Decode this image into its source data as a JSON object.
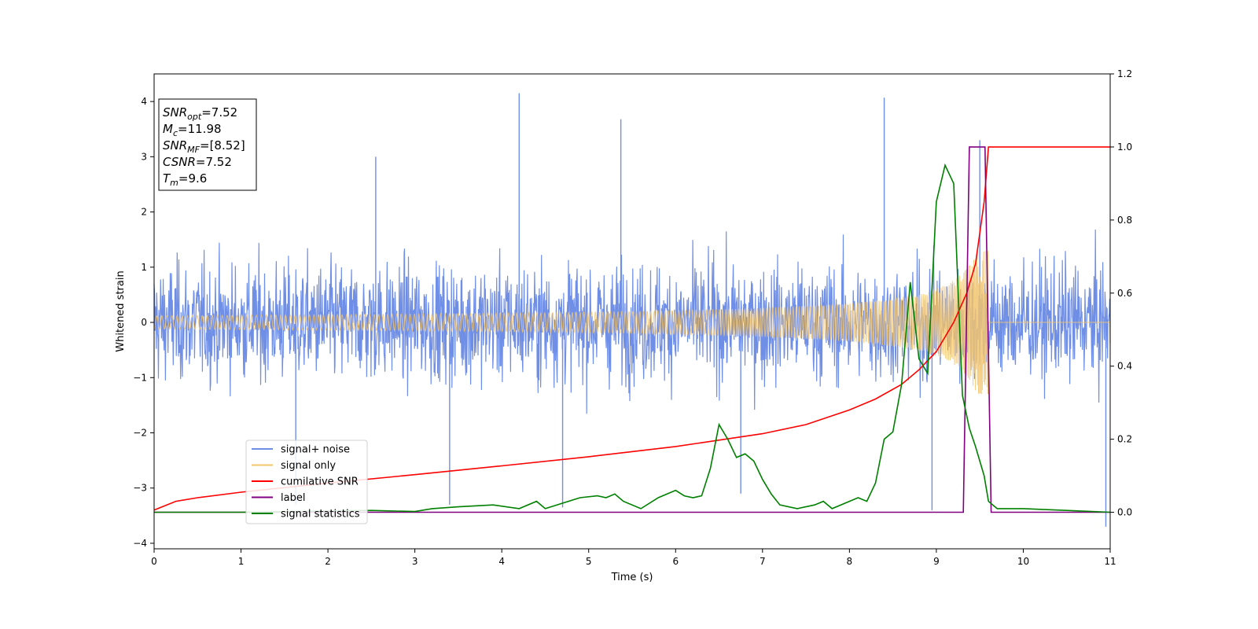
{
  "chart_data": {
    "type": "line",
    "xlabel": "Time (s)",
    "ylabel": "Whitened strain",
    "xlim": [
      0,
      11
    ],
    "ylim_left": [
      -4.1,
      4.5
    ],
    "ylim_right": [
      -0.1,
      1.2
    ],
    "x_ticks": [
      0,
      1,
      2,
      3,
      4,
      5,
      6,
      7,
      8,
      9,
      10,
      11
    ],
    "y_ticks_left": [
      -4,
      -3,
      -2,
      -1,
      0,
      1,
      2,
      3,
      4
    ],
    "y_ticks_right": [
      0.0,
      0.2,
      0.4,
      0.6,
      0.8,
      1.0,
      1.2
    ],
    "grid": false,
    "legend_position": "lower-left",
    "annotation": {
      "lines": [
        {
          "main": "SNR",
          "sub": "opt",
          "rest": "=7.52"
        },
        {
          "main": "M",
          "sub": "c",
          "rest": "=11.98"
        },
        {
          "main": "SNR",
          "sub": "MF",
          "rest": "=[8.52]"
        },
        {
          "main": "CSNR",
          "sub": "",
          "rest": "=7.52"
        },
        {
          "main": "T",
          "sub": "m",
          "rest": "=9.6"
        }
      ]
    },
    "series": [
      {
        "name": "signal+ noise",
        "axis": "left",
        "color": "#6f8ee6",
        "kind": "noise",
        "noise_std": 0.95,
        "num_samples": 2200,
        "spikes": [
          [
            4.2,
            4.15
          ],
          [
            8.4,
            4.07
          ],
          [
            5.37,
            3.68
          ],
          [
            9.5,
            3.3
          ],
          [
            2.55,
            3.0
          ],
          [
            10.95,
            -3.7
          ],
          [
            8.95,
            -3.4
          ],
          [
            4.7,
            -3.35
          ],
          [
            1.63,
            -3.3
          ],
          [
            3.4,
            -3.3
          ],
          [
            6.75,
            -3.1
          ]
        ]
      },
      {
        "name": "signal only",
        "axis": "left",
        "color": "#f2c46e",
        "kind": "chirp",
        "merger_time": 9.6,
        "peak_amplitude": 1.3
      },
      {
        "name": "cumilative SNR",
        "axis": "right",
        "color": "#ff0000",
        "x": [
          0,
          0.25,
          0.5,
          1.0,
          2.0,
          3.0,
          4.0,
          5.0,
          6.0,
          7.0,
          7.5,
          8.0,
          8.3,
          8.6,
          8.8,
          9.0,
          9.2,
          9.35,
          9.45,
          9.55,
          9.6,
          11.0
        ],
        "y": [
          0.006,
          0.03,
          0.04,
          0.055,
          0.08,
          0.103,
          0.127,
          0.152,
          0.18,
          0.215,
          0.24,
          0.28,
          0.31,
          0.35,
          0.39,
          0.44,
          0.52,
          0.6,
          0.68,
          0.85,
          1.0,
          1.0
        ]
      },
      {
        "name": "label",
        "axis": "right",
        "color": "#800080",
        "x": [
          0,
          9.31,
          9.38,
          9.56,
          9.63,
          11.0
        ],
        "y": [
          0,
          0,
          1,
          1,
          0,
          0
        ]
      },
      {
        "name": "signal statistics",
        "axis": "right",
        "color": "#008000",
        "x": [
          0,
          0.5,
          1.0,
          2.5,
          3.0,
          3.2,
          3.5,
          3.9,
          4.2,
          4.4,
          4.5,
          4.9,
          5.1,
          5.2,
          5.3,
          5.4,
          5.6,
          5.8,
          6.0,
          6.1,
          6.2,
          6.3,
          6.4,
          6.5,
          6.6,
          6.7,
          6.8,
          6.9,
          7.0,
          7.1,
          7.2,
          7.4,
          7.6,
          7.7,
          7.8,
          8.0,
          8.1,
          8.2,
          8.3,
          8.4,
          8.5,
          8.6,
          8.7,
          8.8,
          8.9,
          9.0,
          9.1,
          9.2,
          9.3,
          9.38,
          9.45,
          9.55,
          9.6,
          9.7,
          10.0,
          10.5,
          11.0
        ],
        "y": [
          0.0,
          0.0,
          0.0,
          0.005,
          0.002,
          0.01,
          0.015,
          0.02,
          0.01,
          0.03,
          0.01,
          0.04,
          0.045,
          0.04,
          0.05,
          0.03,
          0.01,
          0.04,
          0.06,
          0.045,
          0.04,
          0.045,
          0.12,
          0.24,
          0.2,
          0.15,
          0.16,
          0.14,
          0.09,
          0.05,
          0.02,
          0.01,
          0.02,
          0.03,
          0.01,
          0.03,
          0.04,
          0.03,
          0.08,
          0.2,
          0.22,
          0.35,
          0.63,
          0.42,
          0.38,
          0.85,
          0.95,
          0.9,
          0.32,
          0.23,
          0.18,
          0.1,
          0.03,
          0.01,
          0.01,
          0.005,
          0.0
        ]
      }
    ]
  }
}
